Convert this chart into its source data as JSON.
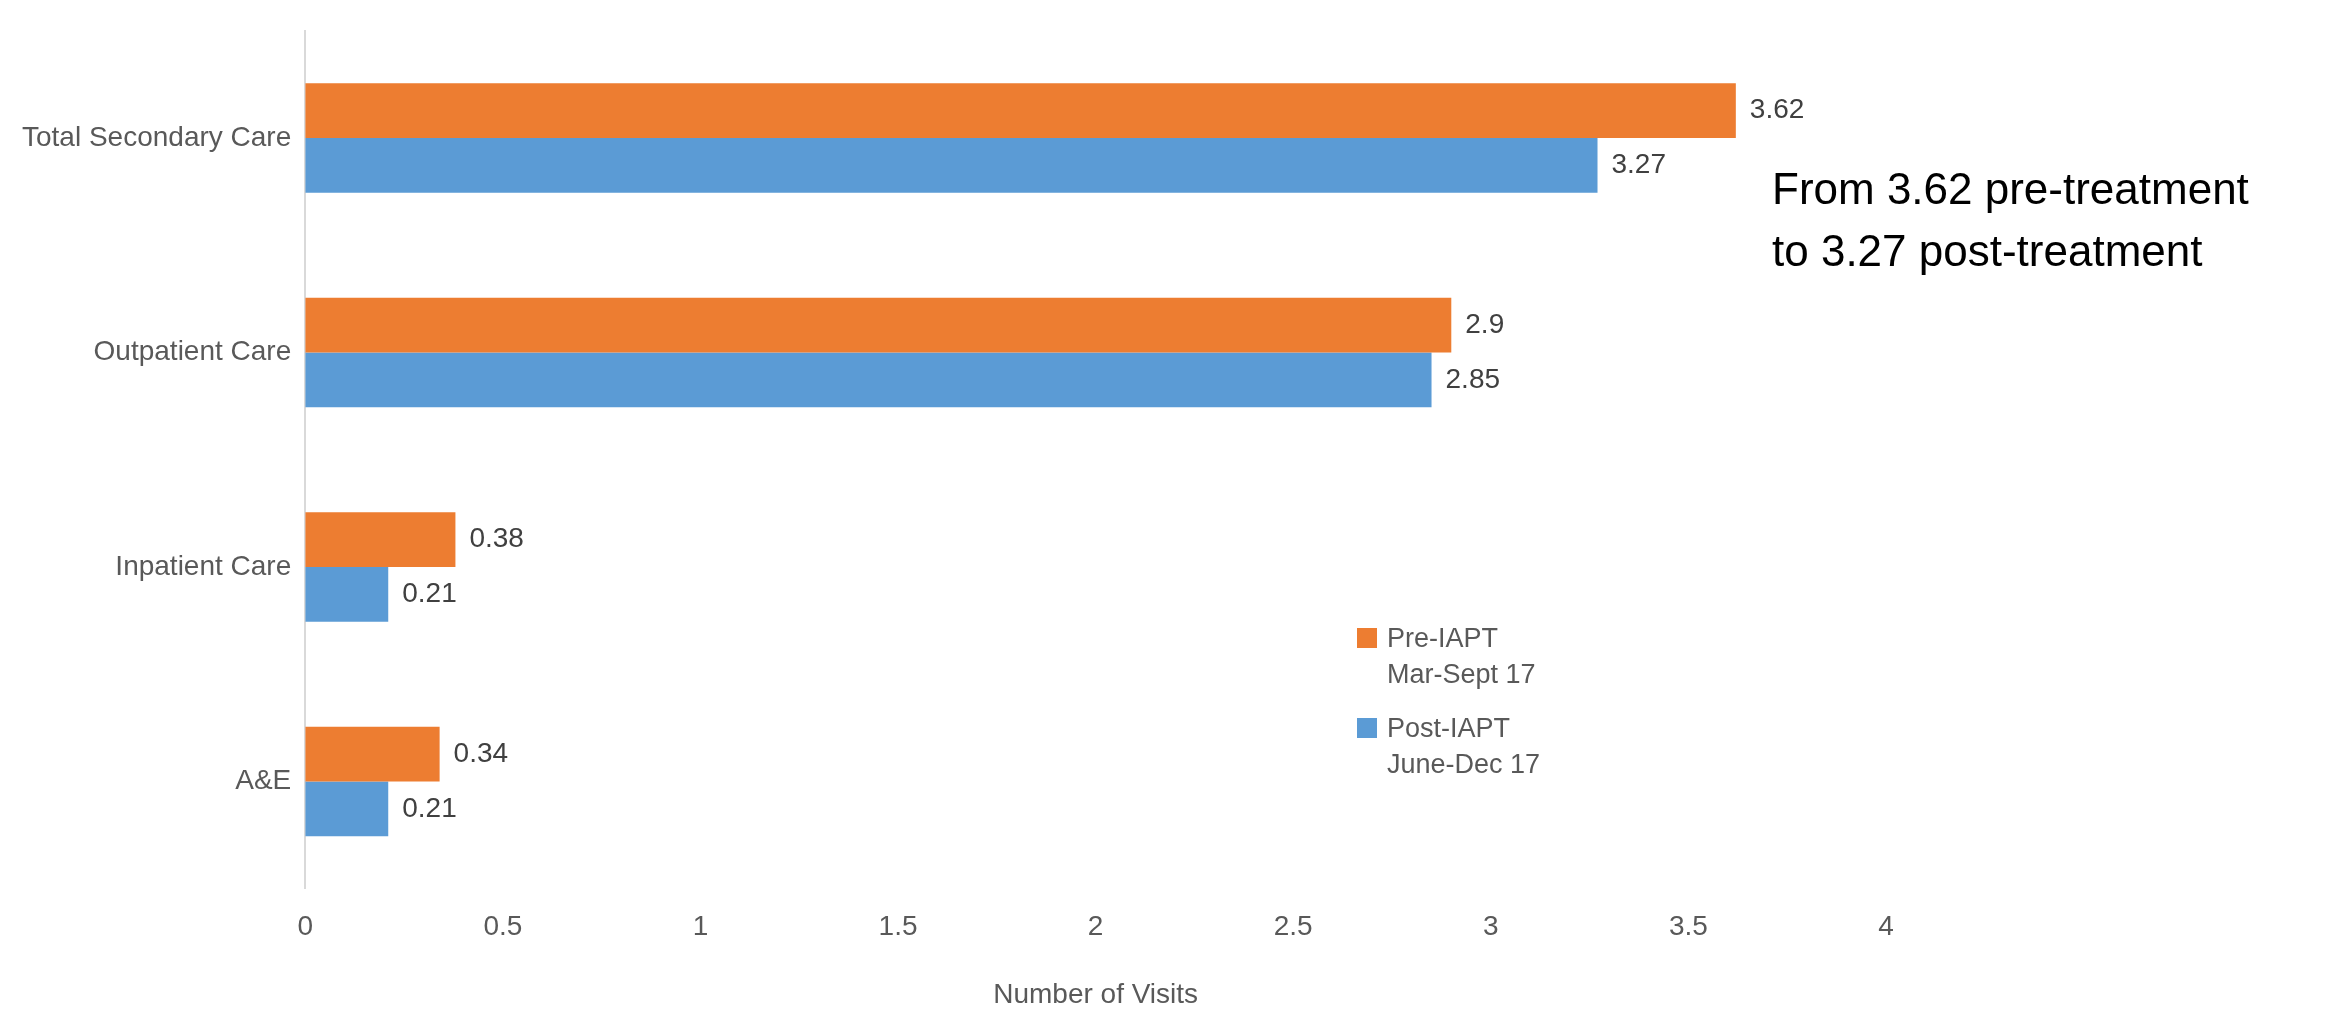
{
  "chart_data": {
    "type": "bar",
    "orientation": "horizontal",
    "xlabel": "Number of Visits",
    "categories": [
      "Total Secondary Care",
      "Outpatient Care",
      "Inpatient Care",
      "A&E"
    ],
    "series": [
      {
        "name": "Pre-IAPT Mar-Sept 17",
        "color": "#ed7d31",
        "values": [
          3.62,
          2.9,
          0.38,
          0.34
        ]
      },
      {
        "name": "Post-IAPT June-Dec 17",
        "color": "#5b9bd5",
        "values": [
          3.27,
          2.85,
          0.21,
          0.21
        ]
      }
    ],
    "xlim": [
      0,
      4
    ],
    "xticks": [
      0,
      0.5,
      1,
      1.5,
      2,
      2.5,
      3,
      3.5,
      4
    ],
    "grid": false,
    "legend": "bottom right",
    "data_labels": true,
    "annotations": [
      "From 3.62 pre-treatment to 3.27 post-treatment"
    ]
  }
}
